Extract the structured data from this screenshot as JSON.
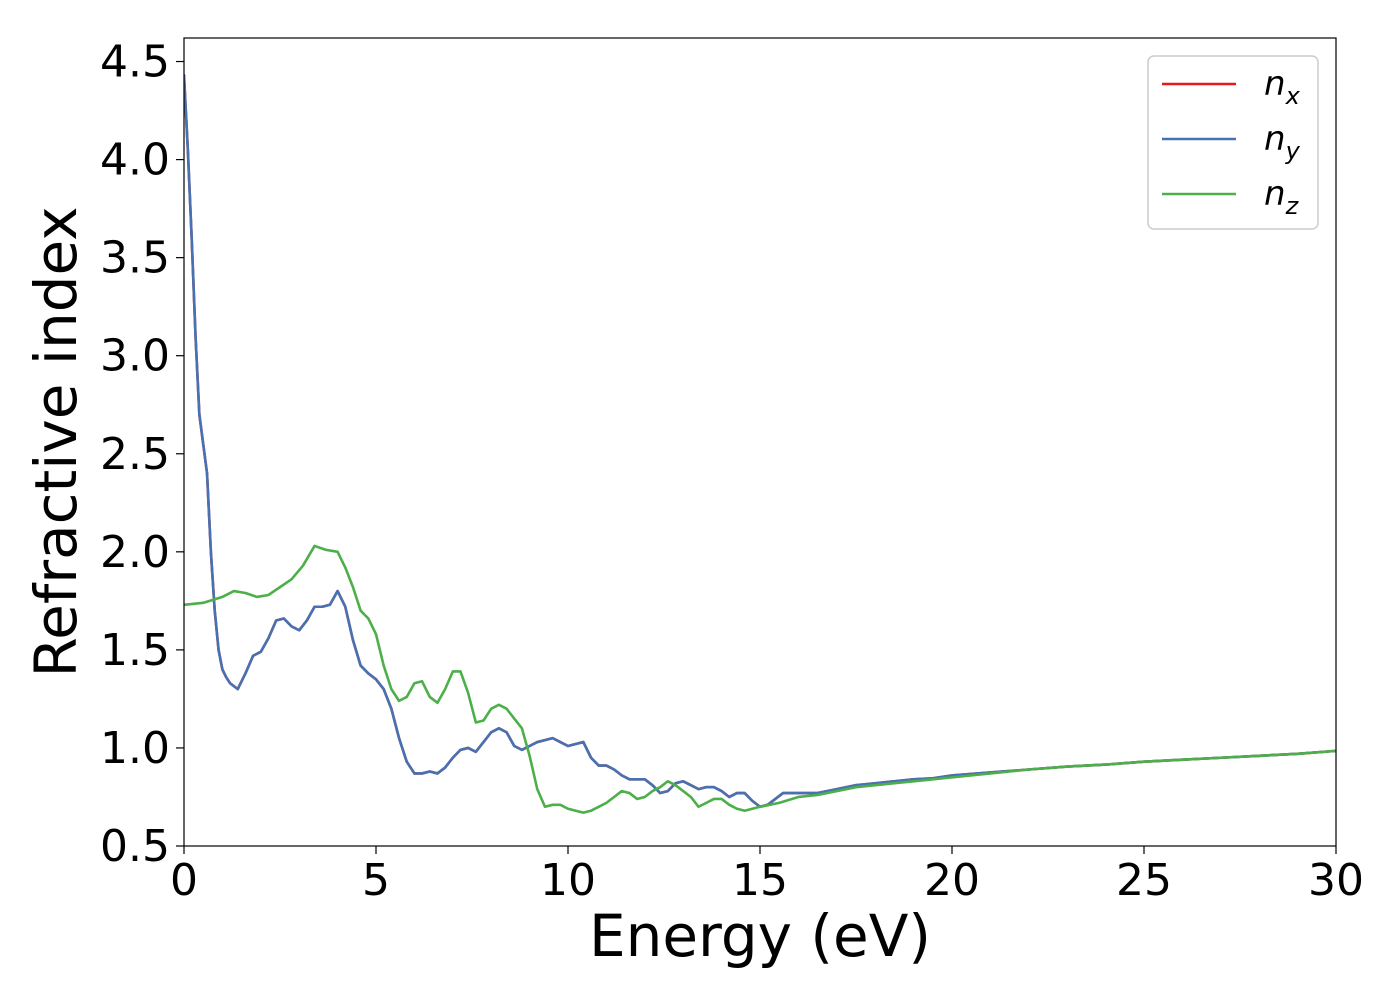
{
  "chart_data": {
    "type": "line",
    "title": "",
    "xlabel": "Energy (eV)",
    "ylabel": "Refractive index",
    "xlim": [
      0,
      30
    ],
    "ylim": [
      0.5,
      4.62
    ],
    "xticks": [
      0,
      5,
      10,
      15,
      20,
      25,
      30
    ],
    "xtick_labels": [
      "0",
      "5",
      "10",
      "15",
      "20",
      "25",
      "30"
    ],
    "yticks": [
      0.5,
      1.0,
      1.5,
      2.0,
      2.5,
      3.0,
      3.5,
      4.0,
      4.5
    ],
    "ytick_labels": [
      "0.5",
      "1.0",
      "1.5",
      "2.0",
      "2.5",
      "3.0",
      "3.5",
      "4.0",
      "4.5"
    ],
    "grid": false,
    "legend_position": "top-right",
    "series": [
      {
        "name": "n",
        "subscript": "x",
        "color": "#e41a1c",
        "x": [
          0,
          0.1,
          0.2,
          0.3,
          0.4,
          0.5,
          0.6,
          0.7,
          0.8,
          0.9,
          1.0,
          1.1,
          1.2,
          1.4,
          1.6,
          1.8,
          2.0,
          2.2,
          2.4,
          2.6,
          2.8,
          3.0,
          3.2,
          3.4,
          3.6,
          3.8,
          4.0,
          4.2,
          4.4,
          4.6,
          4.8,
          5.0,
          5.2,
          5.4,
          5.6,
          5.8,
          6.0,
          6.2,
          6.4,
          6.6,
          6.8,
          7.0,
          7.2,
          7.4,
          7.6,
          7.8,
          8.0,
          8.2,
          8.4,
          8.6,
          8.8,
          9.0,
          9.2,
          9.4,
          9.6,
          9.8,
          10.0,
          10.2,
          10.4,
          10.6,
          10.8,
          11.0,
          11.2,
          11.4,
          11.6,
          11.8,
          12.0,
          12.2,
          12.4,
          12.6,
          12.8,
          13.0,
          13.2,
          13.4,
          13.6,
          13.8,
          14.0,
          14.2,
          14.4,
          14.6,
          14.8,
          15.0,
          15.2,
          15.4,
          15.6,
          15.8,
          16.0,
          16.5,
          17.0,
          17.5,
          18.0,
          18.5,
          19.0,
          19.5,
          20.0,
          21.0,
          22.0,
          23.0,
          24.0,
          25.0,
          26.0,
          27.0,
          28.0,
          29.0,
          30.0
        ],
        "y": [
          4.43,
          4.05,
          3.6,
          3.1,
          2.7,
          2.55,
          2.4,
          2.0,
          1.7,
          1.5,
          1.4,
          1.36,
          1.33,
          1.3,
          1.38,
          1.47,
          1.49,
          1.56,
          1.65,
          1.66,
          1.62,
          1.6,
          1.65,
          1.72,
          1.72,
          1.73,
          1.8,
          1.72,
          1.55,
          1.42,
          1.38,
          1.35,
          1.3,
          1.2,
          1.05,
          0.93,
          0.87,
          0.87,
          0.88,
          0.87,
          0.9,
          0.95,
          0.99,
          1.0,
          0.98,
          1.03,
          1.08,
          1.1,
          1.08,
          1.01,
          0.99,
          1.01,
          1.03,
          1.04,
          1.05,
          1.03,
          1.01,
          1.02,
          1.03,
          0.95,
          0.91,
          0.91,
          0.89,
          0.86,
          0.84,
          0.84,
          0.84,
          0.81,
          0.77,
          0.78,
          0.82,
          0.83,
          0.81,
          0.79,
          0.8,
          0.8,
          0.78,
          0.75,
          0.77,
          0.77,
          0.73,
          0.7,
          0.71,
          0.74,
          0.77,
          0.77,
          0.77,
          0.77,
          0.79,
          0.81,
          0.82,
          0.83,
          0.84,
          0.845,
          0.86,
          0.875,
          0.89,
          0.905,
          0.915,
          0.93,
          0.94,
          0.95,
          0.96,
          0.97,
          0.985
        ]
      },
      {
        "name": "n",
        "subscript": "y",
        "color": "#4672b4",
        "x": [
          0,
          0.1,
          0.2,
          0.3,
          0.4,
          0.5,
          0.6,
          0.7,
          0.8,
          0.9,
          1.0,
          1.1,
          1.2,
          1.4,
          1.6,
          1.8,
          2.0,
          2.2,
          2.4,
          2.6,
          2.8,
          3.0,
          3.2,
          3.4,
          3.6,
          3.8,
          4.0,
          4.2,
          4.4,
          4.6,
          4.8,
          5.0,
          5.2,
          5.4,
          5.6,
          5.8,
          6.0,
          6.2,
          6.4,
          6.6,
          6.8,
          7.0,
          7.2,
          7.4,
          7.6,
          7.8,
          8.0,
          8.2,
          8.4,
          8.6,
          8.8,
          9.0,
          9.2,
          9.4,
          9.6,
          9.8,
          10.0,
          10.2,
          10.4,
          10.6,
          10.8,
          11.0,
          11.2,
          11.4,
          11.6,
          11.8,
          12.0,
          12.2,
          12.4,
          12.6,
          12.8,
          13.0,
          13.2,
          13.4,
          13.6,
          13.8,
          14.0,
          14.2,
          14.4,
          14.6,
          14.8,
          15.0,
          15.2,
          15.4,
          15.6,
          15.8,
          16.0,
          16.5,
          17.0,
          17.5,
          18.0,
          18.5,
          19.0,
          19.5,
          20.0,
          21.0,
          22.0,
          23.0,
          24.0,
          25.0,
          26.0,
          27.0,
          28.0,
          29.0,
          30.0
        ],
        "y": [
          4.43,
          4.05,
          3.6,
          3.1,
          2.7,
          2.55,
          2.4,
          2.0,
          1.7,
          1.5,
          1.4,
          1.36,
          1.33,
          1.3,
          1.38,
          1.47,
          1.49,
          1.56,
          1.65,
          1.66,
          1.62,
          1.6,
          1.65,
          1.72,
          1.72,
          1.73,
          1.8,
          1.72,
          1.55,
          1.42,
          1.38,
          1.35,
          1.3,
          1.2,
          1.05,
          0.93,
          0.87,
          0.87,
          0.88,
          0.87,
          0.9,
          0.95,
          0.99,
          1.0,
          0.98,
          1.03,
          1.08,
          1.1,
          1.08,
          1.01,
          0.99,
          1.01,
          1.03,
          1.04,
          1.05,
          1.03,
          1.01,
          1.02,
          1.03,
          0.95,
          0.91,
          0.91,
          0.89,
          0.86,
          0.84,
          0.84,
          0.84,
          0.81,
          0.77,
          0.78,
          0.82,
          0.83,
          0.81,
          0.79,
          0.8,
          0.8,
          0.78,
          0.75,
          0.77,
          0.77,
          0.73,
          0.7,
          0.71,
          0.74,
          0.77,
          0.77,
          0.77,
          0.77,
          0.79,
          0.81,
          0.82,
          0.83,
          0.84,
          0.845,
          0.86,
          0.875,
          0.89,
          0.905,
          0.915,
          0.93,
          0.94,
          0.95,
          0.96,
          0.97,
          0.985
        ]
      },
      {
        "name": "n",
        "subscript": "z",
        "color": "#4daf4a",
        "x": [
          0,
          0.5,
          1.0,
          1.3,
          1.6,
          1.9,
          2.2,
          2.5,
          2.8,
          3.1,
          3.4,
          3.7,
          4.0,
          4.2,
          4.4,
          4.6,
          4.8,
          5.0,
          5.2,
          5.4,
          5.6,
          5.8,
          6.0,
          6.2,
          6.4,
          6.6,
          6.8,
          7.0,
          7.2,
          7.4,
          7.6,
          7.8,
          8.0,
          8.2,
          8.4,
          8.6,
          8.8,
          9.0,
          9.2,
          9.4,
          9.6,
          9.8,
          10.0,
          10.2,
          10.4,
          10.6,
          10.8,
          11.0,
          11.2,
          11.4,
          11.6,
          11.8,
          12.0,
          12.2,
          12.4,
          12.6,
          12.8,
          13.0,
          13.2,
          13.4,
          13.6,
          13.8,
          14.0,
          14.2,
          14.4,
          14.6,
          14.8,
          15.0,
          15.5,
          16.0,
          16.5,
          17.0,
          17.5,
          18.0,
          18.5,
          19.0,
          19.5,
          20.0,
          21.0,
          22.0,
          23.0,
          24.0,
          25.0,
          26.0,
          27.0,
          28.0,
          29.0,
          30.0
        ],
        "y": [
          1.73,
          1.74,
          1.77,
          1.8,
          1.79,
          1.77,
          1.78,
          1.82,
          1.86,
          1.93,
          2.03,
          2.01,
          2.0,
          1.92,
          1.82,
          1.7,
          1.66,
          1.58,
          1.42,
          1.3,
          1.24,
          1.26,
          1.33,
          1.34,
          1.26,
          1.23,
          1.3,
          1.39,
          1.39,
          1.28,
          1.13,
          1.14,
          1.2,
          1.22,
          1.2,
          1.15,
          1.1,
          0.96,
          0.79,
          0.7,
          0.71,
          0.71,
          0.69,
          0.68,
          0.67,
          0.68,
          0.7,
          0.72,
          0.75,
          0.78,
          0.77,
          0.74,
          0.75,
          0.78,
          0.8,
          0.83,
          0.81,
          0.78,
          0.75,
          0.7,
          0.72,
          0.74,
          0.74,
          0.71,
          0.69,
          0.68,
          0.69,
          0.7,
          0.72,
          0.75,
          0.76,
          0.78,
          0.8,
          0.81,
          0.82,
          0.83,
          0.84,
          0.85,
          0.87,
          0.89,
          0.905,
          0.915,
          0.93,
          0.94,
          0.95,
          0.96,
          0.97,
          0.985
        ]
      }
    ]
  }
}
